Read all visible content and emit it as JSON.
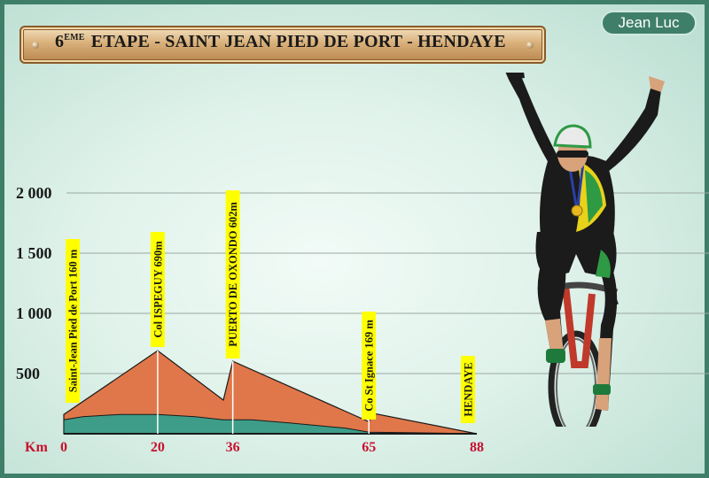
{
  "header": {
    "stage_number": "6",
    "stage_suffix": "EME",
    "title": "ETAPE -  SAINT JEAN PIED DE PORT - HENDAYE",
    "badge": "Jean Luc"
  },
  "chart_data": {
    "type": "area",
    "title": "6EME ETAPE - SAINT JEAN PIED DE PORT - HENDAYE",
    "xlabel": "Km",
    "ylabel": "",
    "x_ticks": [
      0,
      20,
      36,
      65,
      88
    ],
    "y_ticks": [
      500,
      1000,
      1500,
      2000
    ],
    "y_tick_labels": [
      "500",
      "1 000",
      "1 500",
      "2 000"
    ],
    "xlim": [
      0,
      88
    ],
    "ylim": [
      0,
      2000
    ],
    "grid": true,
    "profile": {
      "x": [
        0,
        20,
        34,
        36,
        65,
        66,
        88
      ],
      "y": [
        160,
        690,
        280,
        602,
        100,
        169,
        0
      ]
    },
    "waypoints": [
      {
        "label": "Saint-Jean Pied de Port 160 m",
        "x": 0,
        "y": 160
      },
      {
        "label": "Col ISPEGUY 690m",
        "x": 20,
        "y": 690
      },
      {
        "label": "PUERTO DE OXONDO 602m",
        "x": 36,
        "y": 602
      },
      {
        "label": "Co St Ignace 169 m",
        "x": 65,
        "y": 169
      },
      {
        "label": "HENDAYE",
        "x": 88,
        "y": 0
      }
    ],
    "colors": {
      "profile": "#e0774a",
      "valley": "#3d9d88",
      "label_bg": "#ffff00",
      "tick_label": "#c8102e",
      "grid": "#9aa8a2"
    }
  }
}
